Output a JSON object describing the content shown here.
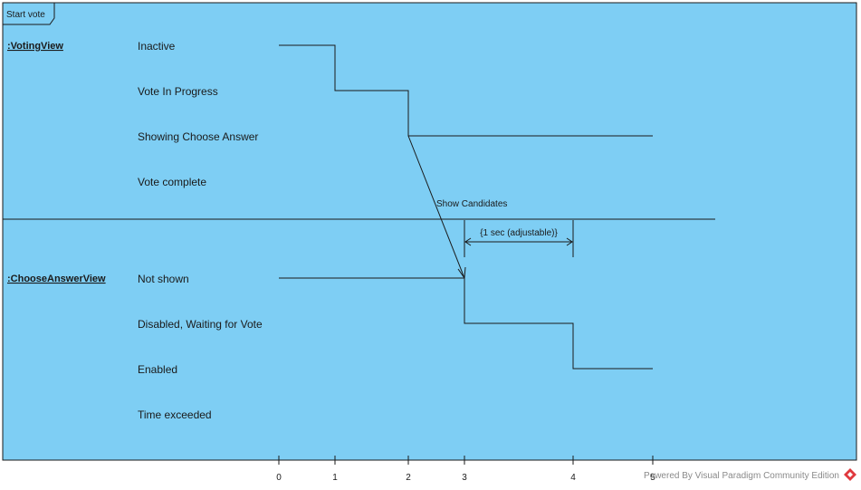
{
  "frame": {
    "title": "Start vote",
    "background": "#7ecef4",
    "line_color": "#1a1a1a"
  },
  "lifelines": [
    {
      "name": ":VotingView",
      "states": [
        "Inactive",
        "Vote In Progress",
        "Showing Choose Answer",
        "Vote complete"
      ]
    },
    {
      "name": ":ChooseAnswerView",
      "states": [
        "Not shown",
        "Disabled, Waiting for Vote",
        "Enabled",
        "Time exceeded"
      ]
    }
  ],
  "message": {
    "label": "Show Candidates"
  },
  "duration_constraint": {
    "label": "{1 sec (adjustable)}"
  },
  "time_ticks": [
    "0",
    "1",
    "2",
    "3",
    "4",
    "5"
  ],
  "watermark": {
    "text": "Powered By Visual Paradigm Community Edition",
    "icon": "visual-paradigm-logo-icon",
    "icon_color": "#e0393e"
  }
}
